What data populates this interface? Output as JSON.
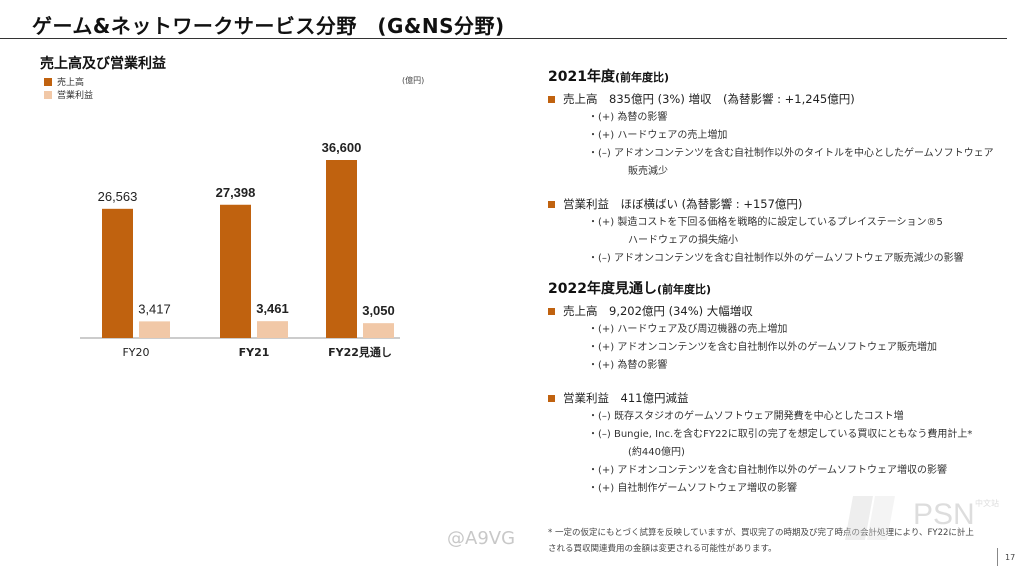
{
  "page": {
    "title": "ゲーム&ネットワークサービス分野　(G&NS分野)",
    "page_number": "17"
  },
  "left": {
    "chart_title": "売上高及び営業利益",
    "unit": "(億円)",
    "legend": [
      {
        "label": "売上高",
        "color": "#c0620f"
      },
      {
        "label": "営業利益",
        "color": "#f1c8a7"
      }
    ]
  },
  "chart_data": {
    "type": "bar",
    "title": "売上高及び営業利益",
    "unit": "(億円)",
    "categories": [
      "FY20",
      "FY21",
      "FY22見通し"
    ],
    "series": [
      {
        "name": "売上高",
        "values": [
          26563,
          27398,
          36600
        ],
        "labels": [
          "26,563",
          "27,398",
          "36,600"
        ],
        "color": "#c0620f"
      },
      {
        "name": "営業利益",
        "values": [
          3417,
          3461,
          3050
        ],
        "labels": [
          "3,417",
          "3,461",
          "3,050"
        ],
        "color": "#f1c8a7"
      }
    ],
    "bold_categories": [
      false,
      true,
      true
    ],
    "grid": false,
    "legend_position": "top-left"
  },
  "right": {
    "s2021": {
      "title": "2021年度",
      "subtitle": "(前年度比)",
      "sales": {
        "text": "売上高　835億円 (3%) 増収　(為替影響 : +1,245億円)",
        "items": [
          {
            "line1": "・(+) 為替の影響"
          },
          {
            "line1": "・(+) ハードウェアの売上増加"
          },
          {
            "line1": "・(–) アドオンコンテンツを含む自社制作以外のタイトルを中心としたゲームソフトウェア",
            "line2": "販売減少"
          }
        ]
      },
      "profit": {
        "text": "営業利益　ほぼ横ばい (為替影響 : +157億円)",
        "items": [
          {
            "line1": "・(+) 製造コストを下回る価格を戦略的に設定しているプレイステーション®5",
            "line2": "ハードウェアの損失縮小"
          },
          {
            "line1": "・(–) アドオンコンテンツを含む自社制作以外のゲームソフトウェア販売減少の影響"
          }
        ]
      }
    },
    "s2022": {
      "title": "2022年度見通し",
      "subtitle": "(前年度比)",
      "sales": {
        "text": "売上高　9,202億円 (34%) 大幅増収",
        "items": [
          {
            "line1": "・(+) ハードウェア及び周辺機器の売上増加"
          },
          {
            "line1": "・(+) アドオンコンテンツを含む自社制作以外のゲームソフトウェア販売増加"
          },
          {
            "line1": "・(+) 為替の影響"
          }
        ]
      },
      "profit": {
        "text": "営業利益　411億円減益",
        "items": [
          {
            "line1": "・(–) 既存スタジオのゲームソフトウェア開発費を中心としたコスト増"
          },
          {
            "line1": "・(–) Bungie, Inc.を含むFY22に取引の完了を想定している買収にともなう費用計上*",
            "line2": "(約440億円)"
          },
          {
            "line1": "・(+) アドオンコンテンツを含む自社制作以外のゲームソフトウェア増収の影響"
          },
          {
            "line1": "・(+) 自社制作ゲームソフトウェア増収の影響"
          }
        ]
      }
    }
  },
  "footnote": {
    "line1": "* 一定の仮定にもとづく試算を反映していますが、買収完了の時期及び完了時点の会計処理により、FY22に計上",
    "line2": "される買収関連費用の金額は変更される可能性があります。"
  },
  "watermarks": {
    "weibo": "@A9VG",
    "psn": "PSN",
    "psn_sub": "中文站"
  }
}
